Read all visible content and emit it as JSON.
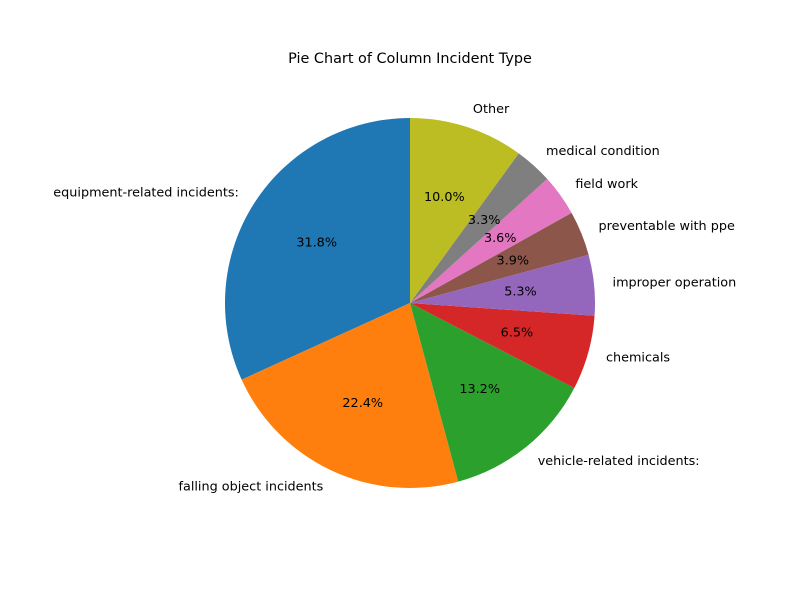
{
  "chart_data": {
    "type": "pie",
    "title": "Pie Chart of Column Incident Type",
    "start_angle_deg": 90,
    "direction": "counterclockwise",
    "slices": [
      {
        "label": "equipment-related incidents:",
        "percent": 31.8,
        "pct_text": "31.8%",
        "color": "#1f77b4"
      },
      {
        "label": "falling object incidents",
        "percent": 22.4,
        "pct_text": "22.4%",
        "color": "#ff7f0e"
      },
      {
        "label": "vehicle-related incidents:",
        "percent": 13.2,
        "pct_text": "13.2%",
        "color": "#2ca02c"
      },
      {
        "label": "chemicals",
        "percent": 6.5,
        "pct_text": "6.5%",
        "color": "#d62728"
      },
      {
        "label": "improper operation",
        "percent": 5.3,
        "pct_text": "5.3%",
        "color": "#9467bd"
      },
      {
        "label": "preventable with ppe",
        "percent": 3.9,
        "pct_text": "3.9%",
        "color": "#8c564b"
      },
      {
        "label": "field work",
        "percent": 3.6,
        "pct_text": "3.6%",
        "color": "#e377c2"
      },
      {
        "label": "medical condition",
        "percent": 3.3,
        "pct_text": "3.3%",
        "color": "#7f7f7f"
      },
      {
        "label": "Other",
        "percent": 10.0,
        "pct_text": "10.0%",
        "color": "#bcbd22"
      }
    ]
  }
}
